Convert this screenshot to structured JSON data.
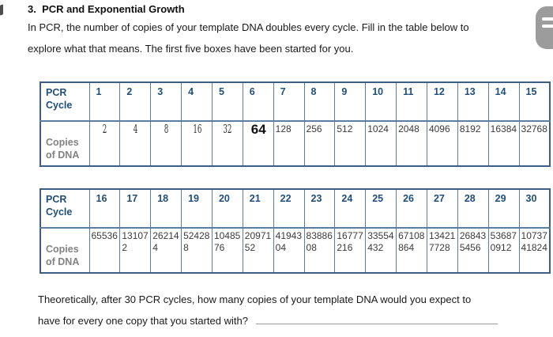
{
  "header": {
    "title": "3.  PCR and Exponential Growth"
  },
  "intro": {
    "line1": "In PCR, the number of copies of your template DNA doubles every cycle. Fill in the table below to",
    "line2": "explore what that means. The first five boxes have been started for you."
  },
  "tables": [
    {
      "cycle_label": "PCR Cycle",
      "copies_label": "Copies of DNA",
      "cycles": [
        "1",
        "2",
        "3",
        "4",
        "5",
        "6",
        "7",
        "8",
        "9",
        "10",
        "11",
        "12",
        "13",
        "14",
        "15"
      ],
      "copies": [
        "2",
        "4",
        "8",
        "16",
        "32",
        "64",
        "128",
        "256",
        "512",
        "1024",
        "2048",
        "4096",
        "8192",
        "16384",
        "32768"
      ],
      "entry_styles": [
        "hand",
        "hand",
        "hand",
        "hand",
        "hand",
        "big",
        "typed",
        "typed",
        "typed",
        "typed",
        "typed",
        "typed",
        "typed",
        "typed",
        "typed"
      ]
    },
    {
      "cycle_label": "PCR Cycle",
      "copies_label": "Copies of DNA",
      "cycles": [
        "16",
        "17",
        "18",
        "19",
        "20",
        "21",
        "22",
        "23",
        "24",
        "25",
        "26",
        "27",
        "28",
        "29",
        "30"
      ],
      "copies": [
        "65536",
        "131072",
        "262144",
        "524288",
        "1048576",
        "2097152",
        "4194304",
        "8388608",
        "16777216",
        "33554432",
        "67108864",
        "134217728",
        "268435456",
        "536870912",
        "1073741824"
      ],
      "entry_styles": [
        "typed",
        "typed",
        "typed",
        "typed",
        "typed",
        "typed",
        "typed",
        "typed",
        "typed",
        "typed",
        "typed",
        "typed",
        "typed",
        "typed",
        "typed"
      ]
    }
  ],
  "question": {
    "line1": "Theoretically, after 30 PCR cycles, how many copies of your template DNA would you expect to",
    "line2": "have for every one copy that you started with?"
  },
  "icons": {
    "menu": "hamburger-menu-icon"
  },
  "colors": {
    "table_outer_border": "#3d5f87",
    "table_inner_border": "#5b7ea3",
    "header_text_blue": "#1f4e79",
    "label_gray": "#828282",
    "menu_pill_gray": "#9c9c9c"
  }
}
